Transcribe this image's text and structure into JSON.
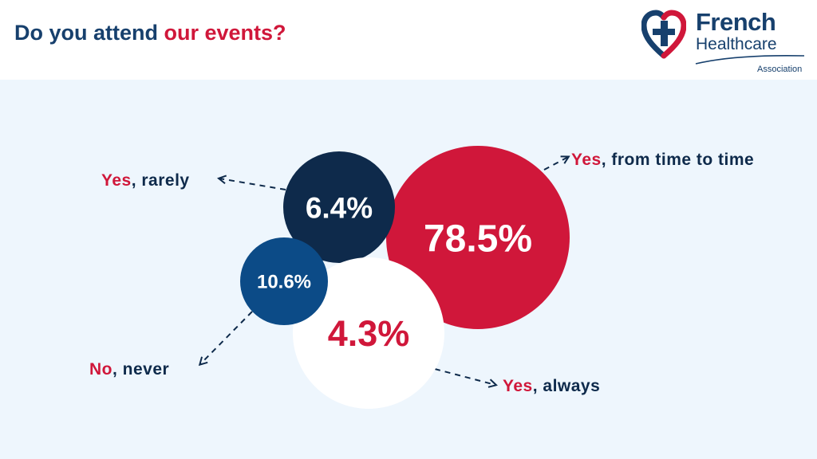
{
  "header": {
    "title_parts": [
      "Do you attend ",
      "our events",
      "?"
    ]
  },
  "logo": {
    "line1": "French",
    "line2": "Healthcare",
    "line3": "Association",
    "icon": "heart-cross-icon"
  },
  "colors": {
    "navy": "#0e2a4b",
    "blue": "#0c4b87",
    "red": "#d0173a",
    "white": "#ffffff",
    "title": "#17406d",
    "background": "#eef6fd"
  },
  "chart_data": {
    "type": "bubble",
    "title": "Do you attend our events?",
    "series": [
      {
        "name": "Yes, from time to time",
        "value": 78.5,
        "label": "78.5%",
        "label_parts": [
          "Yes",
          ", from time to time"
        ],
        "color": "#d0173a",
        "text_color": "#ffffff"
      },
      {
        "name": "Yes, rarely",
        "value": 6.4,
        "label": "6.4%",
        "label_parts": [
          "Yes",
          ", rarely"
        ],
        "color": "#0e2a4b",
        "text_color": "#ffffff"
      },
      {
        "name": "No, never",
        "value": 10.6,
        "label": "10.6%",
        "label_parts": [
          "No",
          ", never"
        ],
        "color": "#0c4b87",
        "text_color": "#ffffff"
      },
      {
        "name": "Yes, always",
        "value": 4.3,
        "label": "4.3%",
        "label_parts": [
          "Yes",
          ", always"
        ],
        "color": "#ffffff",
        "text_color": "#d0173a"
      }
    ]
  }
}
